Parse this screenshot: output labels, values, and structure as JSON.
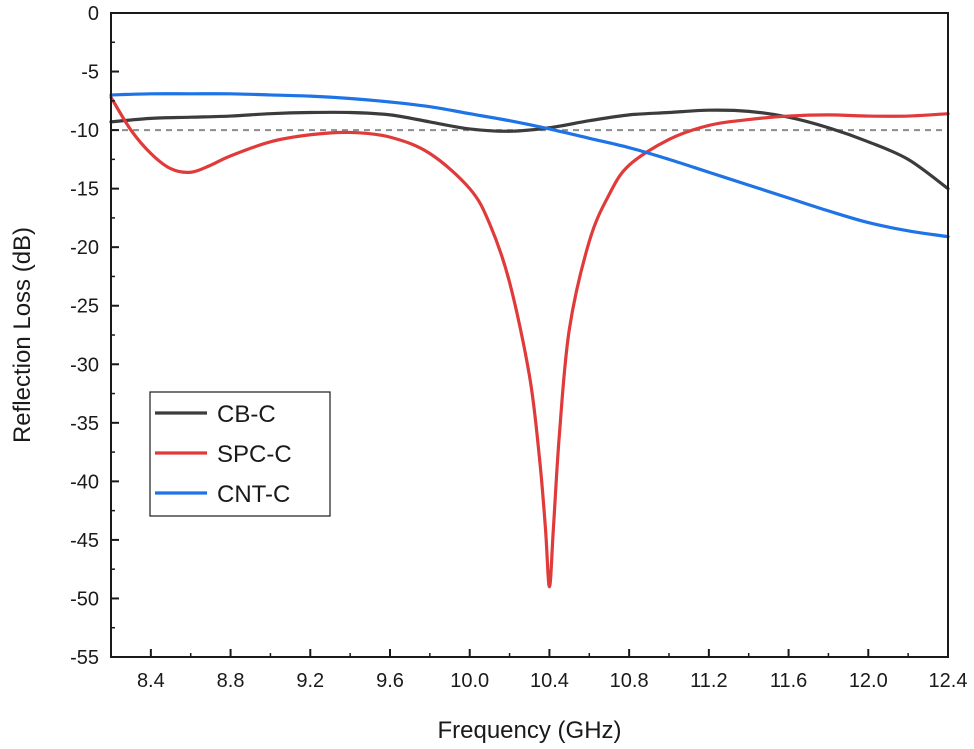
{
  "chart_data": {
    "type": "line",
    "title": "",
    "xlabel": "Frequency (GHz)",
    "ylabel": "Reflection Loss (dB)",
    "xlim": [
      8.2,
      12.4
    ],
    "ylim": [
      -55,
      0
    ],
    "xticks": [
      8.4,
      8.8,
      9.2,
      9.6,
      10.0,
      10.4,
      10.8,
      11.2,
      11.6,
      12.0,
      12.4
    ],
    "xtick_labels": [
      "8.4",
      "8.8",
      "9.2",
      "9.6",
      "10.0",
      "10.4",
      "10.8",
      "11.2",
      "11.6",
      "12.0",
      "12.4"
    ],
    "yticks": [
      0,
      -5,
      -10,
      -15,
      -20,
      -25,
      -30,
      -35,
      -40,
      -45,
      -50,
      -55
    ],
    "ytick_labels": [
      "0",
      "-5",
      "-10",
      "-15",
      "-20",
      "-25",
      "-30",
      "-35",
      "-40",
      "-45",
      "-50",
      "-55"
    ],
    "reference_line": {
      "y": -10,
      "style": "dashed",
      "color": "#8c8c8c"
    },
    "legend_position": "center-left",
    "series": [
      {
        "name": "CB-C",
        "color": "#3c3c3c",
        "x": [
          8.2,
          8.4,
          8.6,
          8.8,
          9.0,
          9.2,
          9.4,
          9.6,
          9.8,
          10.0,
          10.2,
          10.4,
          10.6,
          10.8,
          11.0,
          11.2,
          11.4,
          11.6,
          11.8,
          12.0,
          12.2,
          12.4
        ],
        "y": [
          -9.3,
          -9.0,
          -8.9,
          -8.8,
          -8.6,
          -8.5,
          -8.5,
          -8.7,
          -9.3,
          -9.9,
          -10.1,
          -9.8,
          -9.2,
          -8.7,
          -8.5,
          -8.3,
          -8.4,
          -8.9,
          -9.8,
          -11.0,
          -12.5,
          -15.0
        ]
      },
      {
        "name": "SPC-C",
        "color": "#e03a3a",
        "x": [
          8.2,
          8.3,
          8.4,
          8.5,
          8.6,
          8.7,
          8.8,
          9.0,
          9.2,
          9.4,
          9.6,
          9.8,
          10.0,
          10.1,
          10.2,
          10.3,
          10.35,
          10.38,
          10.4,
          10.42,
          10.45,
          10.5,
          10.6,
          10.7,
          10.8,
          11.0,
          11.2,
          11.4,
          11.6,
          11.8,
          12.0,
          12.2,
          12.4
        ],
        "y": [
          -7.2,
          -10.0,
          -12.0,
          -13.3,
          -13.6,
          -13.0,
          -12.2,
          -11.0,
          -10.4,
          -10.2,
          -10.6,
          -12.0,
          -15.0,
          -18.0,
          -23.0,
          -31.0,
          -38.0,
          -44.0,
          -49.0,
          -44.0,
          -36.0,
          -27.0,
          -19.5,
          -15.5,
          -13.0,
          -10.8,
          -9.6,
          -9.1,
          -8.8,
          -8.7,
          -8.8,
          -8.8,
          -8.6
        ]
      },
      {
        "name": "CNT-C",
        "color": "#1e73e6",
        "x": [
          8.2,
          8.4,
          8.6,
          8.8,
          9.0,
          9.2,
          9.4,
          9.6,
          9.8,
          10.0,
          10.2,
          10.4,
          10.6,
          10.8,
          11.0,
          11.2,
          11.4,
          11.6,
          11.8,
          12.0,
          12.2,
          12.4
        ],
        "y": [
          -7.0,
          -6.9,
          -6.9,
          -6.9,
          -7.0,
          -7.1,
          -7.3,
          -7.6,
          -8.0,
          -8.6,
          -9.2,
          -9.9,
          -10.7,
          -11.5,
          -12.5,
          -13.6,
          -14.7,
          -15.8,
          -16.9,
          -17.9,
          -18.6,
          -19.1
        ]
      }
    ]
  }
}
